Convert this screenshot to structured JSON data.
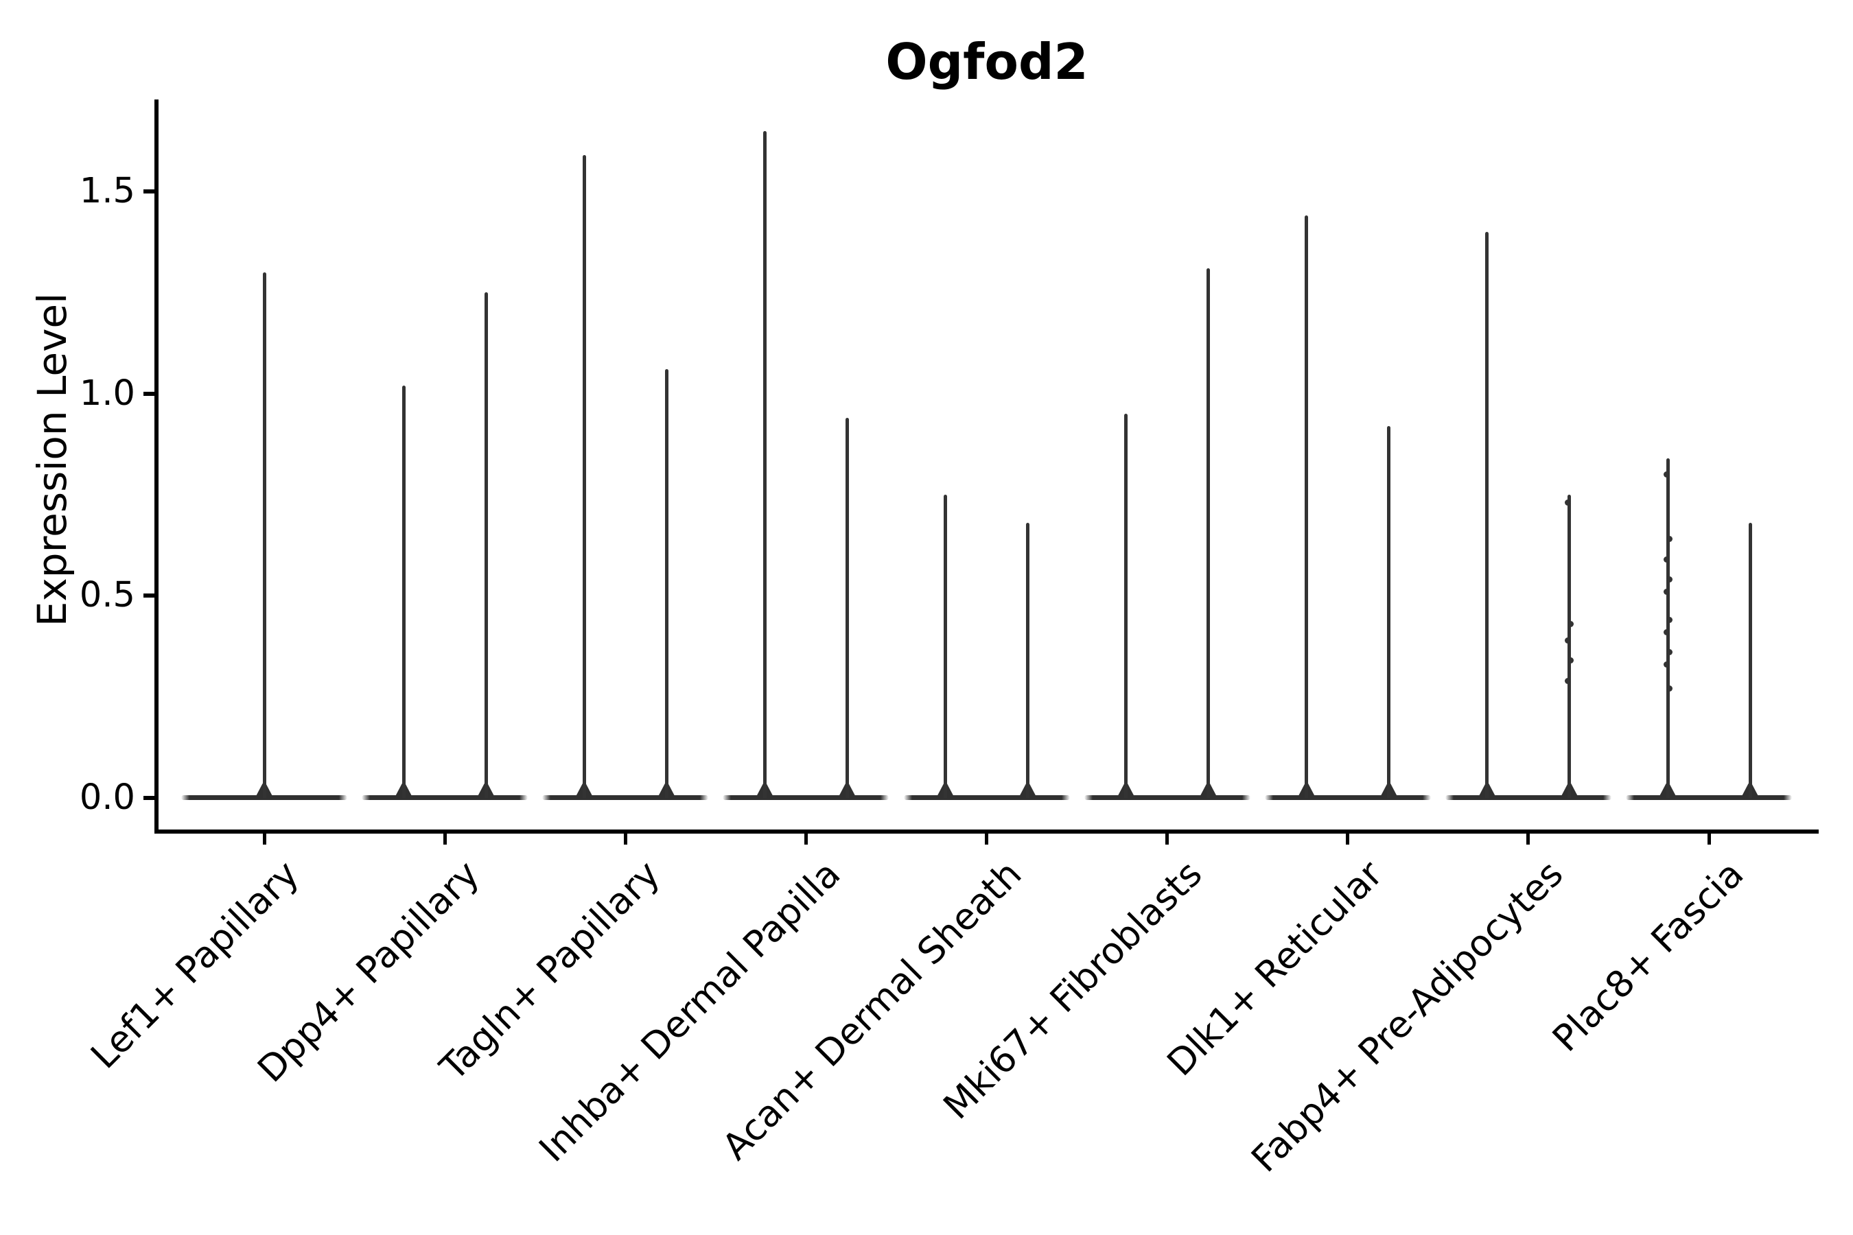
{
  "title": "Ogfod2",
  "y_axis": {
    "label": "Expression Level",
    "tick_labels": [
      "0.0",
      "0.5",
      "1.0",
      "1.5"
    ],
    "tick_values": [
      0,
      0.5,
      1.0,
      1.5
    ]
  },
  "x_axis": {
    "categories": [
      "Lef1+ Papillary",
      "Dpp4+ Papillary",
      "Tagln+ Papillary",
      "Inhba+ Dermal Papilla",
      "Acan+ Dermal Sheath",
      "Mki67+ Fibroblasts",
      "Dlk1+ Reticular",
      "Fabp4+ Pre-Adipocytes",
      "Plac8+ Fascia"
    ]
  },
  "colors": {
    "violin": "#333333",
    "axis": "#000000",
    "text": "#000000",
    "background": "#ffffff"
  },
  "chart_data": {
    "type": "violin",
    "title": "Ogfod2",
    "xlabel": "",
    "ylabel": "Expression Level",
    "ylim": [
      0,
      1.73
    ],
    "yticks": [
      0,
      0.5,
      1.0,
      1.5
    ],
    "grid": false,
    "legend": null,
    "description": "Single-cell expression violin plot; each violin collapses to a flat base at 0 with a thin vertical tail reaching the maximum expression value. Category 1 shows one centered violin; all others show two violins side by side.",
    "categories": [
      "Lef1+ Papillary",
      "Dpp4+ Papillary",
      "Tagln+ Papillary",
      "Inhba+ Dermal Papilla",
      "Acan+ Dermal Sheath",
      "Mki67+ Fibroblasts",
      "Dlk1+ Reticular",
      "Fabp4+ Pre-Adipocytes",
      "Plac8+ Fascia"
    ],
    "violins": [
      {
        "category": "Lef1+ Papillary",
        "spikes": [
          {
            "max": 1.3
          }
        ]
      },
      {
        "category": "Dpp4+ Papillary",
        "spikes": [
          {
            "max": 1.02
          },
          {
            "max": 1.25
          }
        ]
      },
      {
        "category": "Tagln+ Papillary",
        "spikes": [
          {
            "max": 1.59
          },
          {
            "max": 1.06
          }
        ]
      },
      {
        "category": "Inhba+ Dermal Papilla",
        "spikes": [
          {
            "max": 1.65
          },
          {
            "max": 0.94
          }
        ]
      },
      {
        "category": "Acan+ Dermal Sheath",
        "spikes": [
          {
            "max": 0.75
          },
          {
            "max": 0.68
          }
        ]
      },
      {
        "category": "Mki67+ Fibroblasts",
        "spikes": [
          {
            "max": 0.95
          },
          {
            "max": 1.31
          }
        ]
      },
      {
        "category": "Dlk1+ Reticular",
        "spikes": [
          {
            "max": 1.44
          },
          {
            "max": 0.92
          }
        ]
      },
      {
        "category": "Fabp4+ Pre-Adipocytes",
        "spikes": [
          {
            "max": 1.4
          },
          {
            "max": 0.75,
            "dots": [
              0.73,
              0.43,
              0.39,
              0.34,
              0.29
            ]
          }
        ]
      },
      {
        "category": "Plac8+ Fascia",
        "spikes": [
          {
            "max": 0.84,
            "dots": [
              0.8,
              0.64,
              0.59,
              0.54,
              0.51,
              0.44,
              0.41,
              0.36,
              0.33,
              0.27
            ]
          },
          {
            "max": 0.68
          }
        ]
      }
    ]
  }
}
